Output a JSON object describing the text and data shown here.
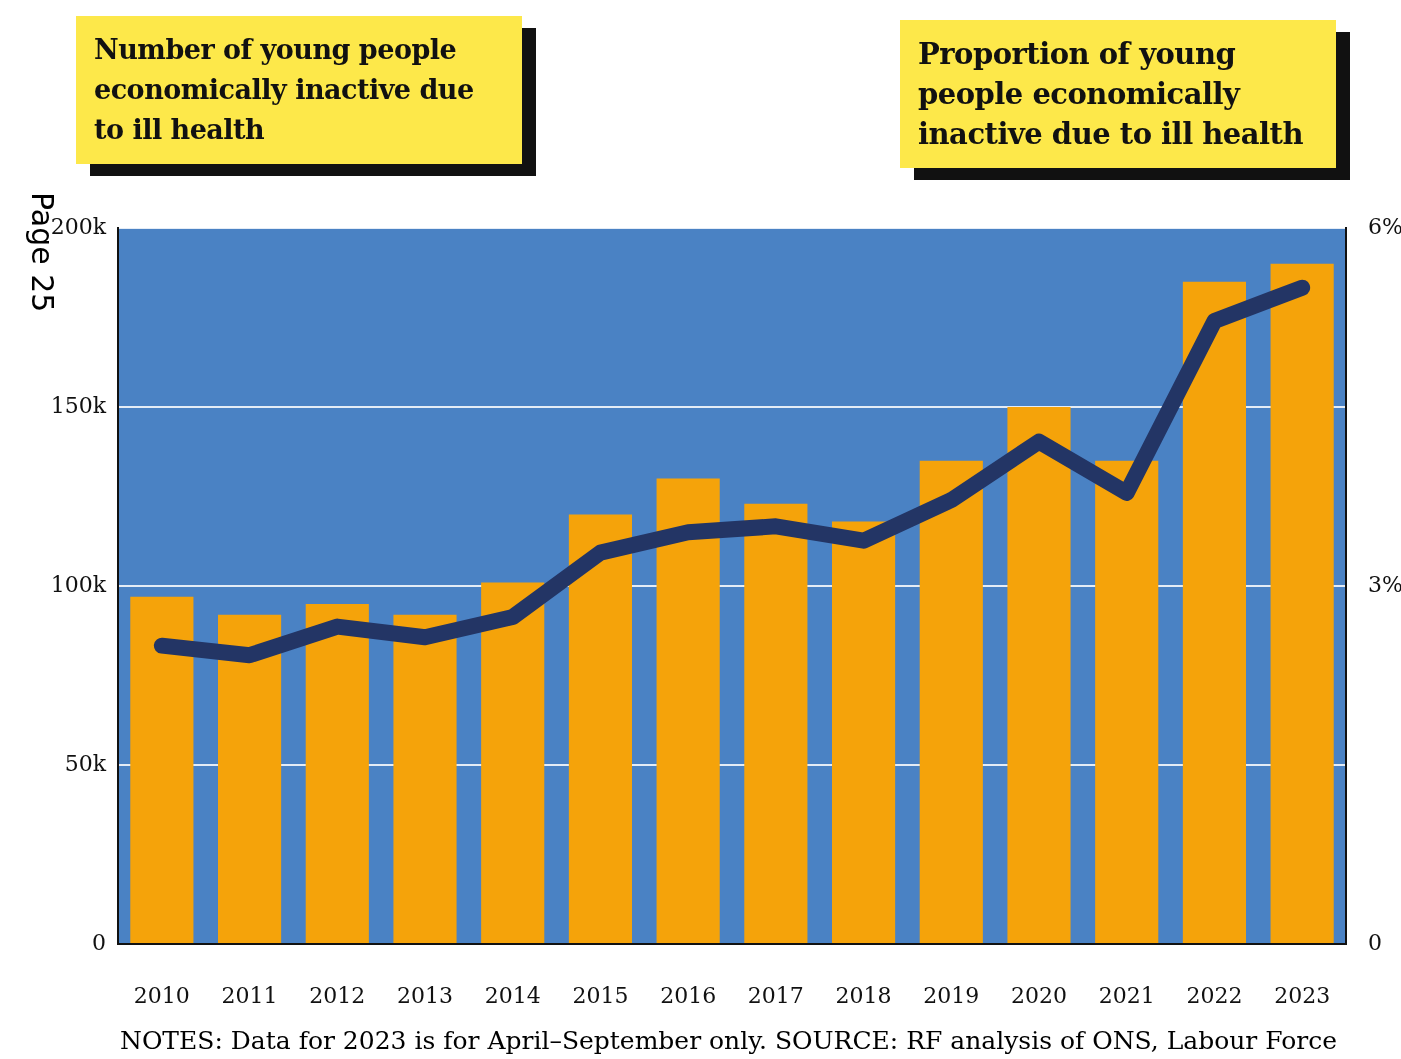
{
  "chart_data": {
    "type": "bar",
    "ylabel": "Number of young people economically inactive due to ill health",
    "y2label": "Proportion of young people economically inactive due to ill health",
    "categories": [
      "2010",
      "2011",
      "2012",
      "2013",
      "2014",
      "2015",
      "2016",
      "2017",
      "2018",
      "2019",
      "2020",
      "2021",
      "2022",
      "2023"
    ],
    "series": [
      {
        "color": "#f5a30a",
        "values": [
          97000,
          92000,
          95000,
          92000,
          101000,
          120000,
          130000,
          123000,
          118000,
          135000,
          150000,
          135000,
          185000,
          190000
        ]
      },
      {
        "type": "line",
        "axis": "y2",
        "color": "#233565",
        "values": [
          2.5,
          2.42,
          2.66,
          2.57,
          2.74,
          3.28,
          3.45,
          3.5,
          3.38,
          3.72,
          4.21,
          3.78,
          5.22,
          5.5
        ]
      }
    ],
    "ylim": [
      0,
      200000
    ],
    "yticks": [
      {
        "value": 0,
        "label": "0"
      },
      {
        "value": 50000,
        "label": "50k"
      },
      {
        "value": 100000,
        "label": "100k"
      },
      {
        "value": 150000,
        "label": "150k"
      },
      {
        "value": 200000,
        "label": "200k"
      }
    ],
    "y2lim": [
      0,
      6
    ],
    "y2ticks": [
      {
        "value": 0,
        "label": "0"
      },
      {
        "value": 3,
        "label": "3%"
      },
      {
        "value": 6,
        "label": "6%"
      }
    ],
    "grid": "y",
    "legend": false,
    "marker": "none",
    "line_style": "solid",
    "annotations": [
      "Page 25",
      "NOTES: Data for 2023 is for April–September only. SOURCE: RF analysis of ONS, Labour Force"
    ]
  }
}
